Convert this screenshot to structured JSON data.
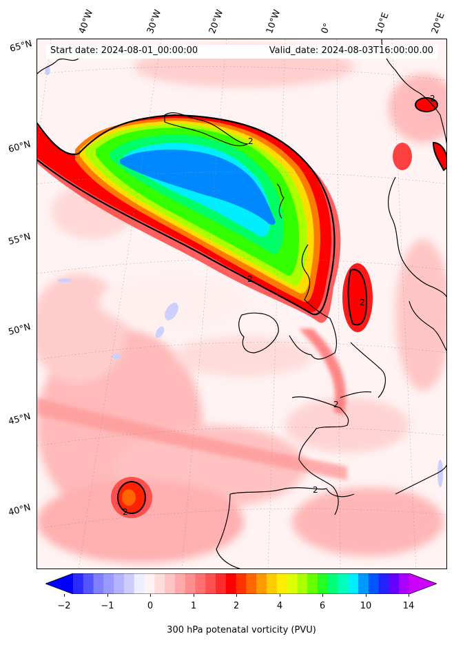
{
  "map": {
    "start_date": "Start date: 2024-08-01_00:00:00",
    "valid_date": "Valid_date: 2024-08-03T16:00:00.00",
    "longitude_labels": [
      "40°W",
      "30°W",
      "20°W",
      "10°W",
      "0°",
      "10°E",
      "20°E"
    ],
    "latitude_labels": [
      "65°N",
      "60°N",
      "55°N",
      "50°N",
      "45°N",
      "40°N"
    ],
    "contour_labels": [
      "2",
      "2",
      "2",
      "2",
      "2",
      "2",
      "2"
    ],
    "field": "300 hPa potential vorticity",
    "contour_level_pvu": 2
  },
  "colorbar": {
    "label": "300 hPa potenatal vorticity (PVU)",
    "tick_labels": [
      "−2",
      "−1",
      "0",
      "1",
      "2",
      "4",
      "6",
      "10",
      "14"
    ],
    "colors": [
      "#0000ff",
      "#2a2aff",
      "#5555ff",
      "#7f7fff",
      "#9999ff",
      "#b3b3ff",
      "#ccccff",
      "#eeeeff",
      "#fff2f2",
      "#ffdcdc",
      "#ffc4c4",
      "#ffaaaa",
      "#ff8e8e",
      "#ff7070",
      "#ff4f4f",
      "#ff2a2a",
      "#ff0000",
      "#ff3300",
      "#ff6600",
      "#ff9900",
      "#ffcc00",
      "#ffee00",
      "#ddff00",
      "#aaff00",
      "#66ff00",
      "#22ff22",
      "#00ff77",
      "#00ffbb",
      "#00eeff",
      "#0099ff",
      "#0055ff",
      "#2222ff",
      "#6600ff",
      "#aa00ff",
      "#cc00ff"
    ]
  }
}
